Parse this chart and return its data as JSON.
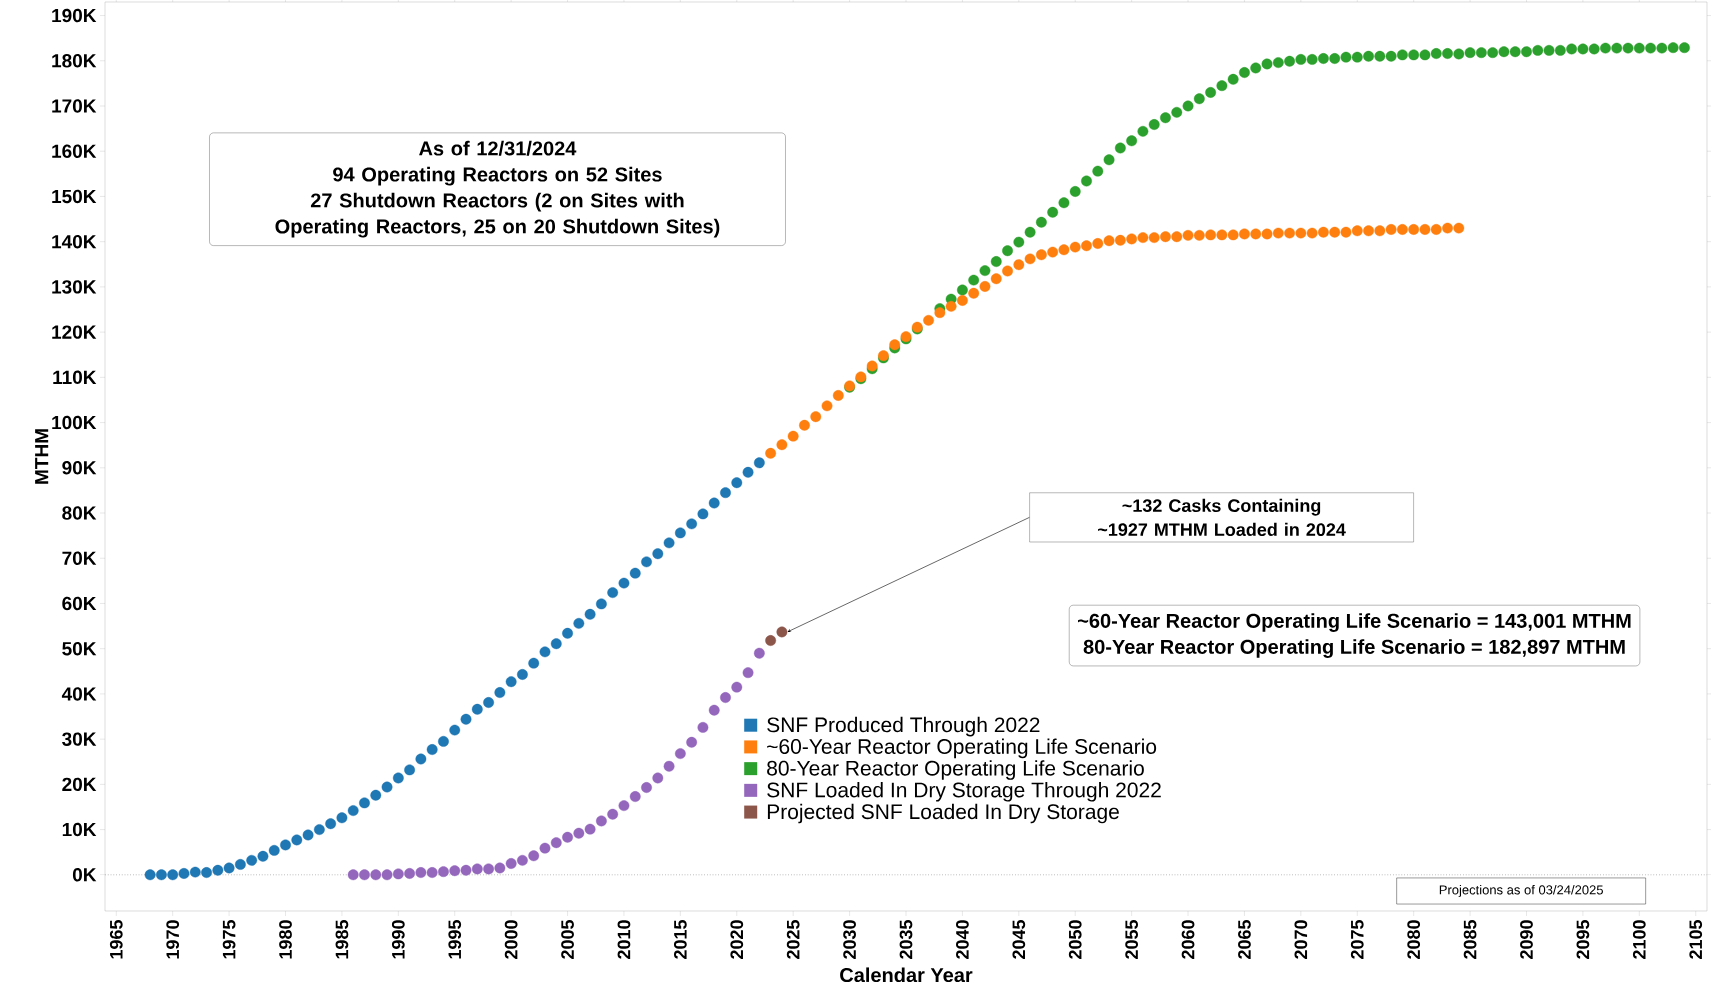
{
  "chart_data": {
    "type": "scatter",
    "xlabel": "Calendar Year",
    "ylabel": "MTHM",
    "xlim": [
      1964,
      2106
    ],
    "ylim": [
      -8000,
      193000
    ],
    "xticks": [
      1965,
      1970,
      1975,
      1980,
      1985,
      1990,
      1995,
      2000,
      2005,
      2010,
      2015,
      2020,
      2025,
      2030,
      2035,
      2040,
      2045,
      2050,
      2055,
      2060,
      2065,
      2070,
      2075,
      2080,
      2085,
      2090,
      2095,
      2100,
      2105
    ],
    "yticks": [
      {
        "value": 0,
        "label": "0K"
      },
      {
        "value": 10000,
        "label": "10K"
      },
      {
        "value": 20000,
        "label": "20K"
      },
      {
        "value": 30000,
        "label": "30K"
      },
      {
        "value": 40000,
        "label": "40K"
      },
      {
        "value": 50000,
        "label": "50K"
      },
      {
        "value": 60000,
        "label": "60K"
      },
      {
        "value": 70000,
        "label": "70K"
      },
      {
        "value": 80000,
        "label": "80K"
      },
      {
        "value": 90000,
        "label": "90K"
      },
      {
        "value": 100000,
        "label": "100K"
      },
      {
        "value": 110000,
        "label": "110K"
      },
      {
        "value": 120000,
        "label": "120K"
      },
      {
        "value": 130000,
        "label": "130K"
      },
      {
        "value": 140000,
        "label": "140K"
      },
      {
        "value": 150000,
        "label": "150K"
      },
      {
        "value": 160000,
        "label": "160K"
      },
      {
        "value": 170000,
        "label": "170K"
      },
      {
        "value": 180000,
        "label": "180K"
      },
      {
        "value": 190000,
        "label": "190K"
      }
    ],
    "marker": "circle",
    "legend": "bottom",
    "grid": false,
    "ref_lines": [
      {
        "axis": "y",
        "value": 0,
        "color": "#999999",
        "line_style": "dotted"
      }
    ],
    "annotations": [
      "As of 12/31/2024",
      "94 Operating Reactors on 52 Sites",
      "27 Shutdown Reactors (2 on Sites with Operating Reactors, 25 on 20 Shutdown Sites)",
      "~132 Casks Containing ~1927 MTHM Loaded in 2024",
      "~60-Year Reactor Operating Life Scenario = 143,001 MTHM",
      "80-Year Reactor Operating Life Scenario = 182,897 MTHM",
      "Projections as of 03/24/2025"
    ],
    "series": [
      {
        "name": "SNF Produced Through 2022",
        "color": "#1f77b4",
        "x": [
          1968,
          1969,
          1970,
          1971,
          1972,
          1973,
          1974,
          1975,
          1976,
          1977,
          1978,
          1979,
          1980,
          1981,
          1982,
          1983,
          1984,
          1985,
          1986,
          1987,
          1988,
          1989,
          1990,
          1991,
          1992,
          1993,
          1994,
          1995,
          1996,
          1997,
          1998,
          1999,
          2000,
          2001,
          2002,
          2003,
          2004,
          2005,
          2006,
          2007,
          2008,
          2009,
          2010,
          2011,
          2012,
          2013,
          2014,
          2015,
          2016,
          2017,
          2018,
          2019,
          2020,
          2021,
          2022
        ],
        "values": [
          0,
          0,
          0,
          300,
          600,
          500,
          1000,
          1500,
          2300,
          3200,
          4100,
          5400,
          6600,
          7700,
          8800,
          10000,
          11300,
          12600,
          14200,
          15900,
          17600,
          19400,
          21400,
          23200,
          25600,
          27700,
          29500,
          32000,
          34400,
          36600,
          38100,
          40300,
          42700,
          44300,
          46800,
          49300,
          51100,
          53400,
          55600,
          57600,
          59900,
          62400,
          64500,
          66700,
          69200,
          71000,
          73400,
          75600,
          77600,
          79800,
          82200,
          84500,
          86700,
          89000,
          91100
        ]
      },
      {
        "name": "~60-Year Reactor Operating Life Scenario",
        "color": "#ff7f0e",
        "x": [
          2023,
          2024,
          2025,
          2026,
          2027,
          2028,
          2029,
          2030,
          2031,
          2032,
          2033,
          2034,
          2035,
          2036,
          2037,
          2038,
          2039,
          2040,
          2041,
          2042,
          2043,
          2044,
          2045,
          2046,
          2047,
          2048,
          2049,
          2050,
          2051,
          2052,
          2053,
          2054,
          2055,
          2056,
          2057,
          2058,
          2059,
          2060,
          2061,
          2062,
          2063,
          2064,
          2065,
          2066,
          2067,
          2068,
          2069,
          2070,
          2071,
          2072,
          2073,
          2074,
          2075,
          2076,
          2077,
          2078,
          2079,
          2080,
          2081,
          2082,
          2083,
          2084
        ],
        "values": [
          93200,
          95100,
          97000,
          99400,
          101300,
          103700,
          106000,
          108100,
          110100,
          112500,
          114800,
          117200,
          119000,
          121100,
          122600,
          124300,
          125700,
          127000,
          128600,
          130100,
          131800,
          133500,
          134900,
          136200,
          137100,
          137700,
          138200,
          138800,
          139100,
          139600,
          140200,
          140300,
          140600,
          140900,
          140900,
          141100,
          141100,
          141400,
          141400,
          141500,
          141500,
          141500,
          141700,
          141700,
          141700,
          141900,
          141900,
          141900,
          141900,
          142100,
          142100,
          142100,
          142400,
          142400,
          142400,
          142700,
          142700,
          142700,
          142700,
          142700,
          143000,
          143000
        ]
      },
      {
        "name": "80-Year Reactor Operating Life Scenario",
        "color": "#2ca02c",
        "x": [
          2030,
          2031,
          2032,
          2033,
          2034,
          2035,
          2036,
          2037,
          2038,
          2039,
          2040,
          2041,
          2042,
          2043,
          2044,
          2045,
          2046,
          2047,
          2048,
          2049,
          2050,
          2051,
          2052,
          2053,
          2054,
          2055,
          2056,
          2057,
          2058,
          2059,
          2060,
          2061,
          2062,
          2063,
          2064,
          2065,
          2066,
          2067,
          2068,
          2069,
          2070,
          2071,
          2072,
          2073,
          2074,
          2075,
          2076,
          2077,
          2078,
          2079,
          2080,
          2081,
          2082,
          2083,
          2084,
          2085,
          2086,
          2087,
          2088,
          2089,
          2090,
          2091,
          2092,
          2093,
          2094,
          2095,
          2096,
          2097,
          2098,
          2099,
          2100,
          2101,
          2102,
          2103,
          2104
        ],
        "values": [
          107800,
          109700,
          111900,
          114300,
          116500,
          118500,
          120700,
          null,
          125200,
          127300,
          129300,
          131500,
          133600,
          135600,
          138000,
          139900,
          142100,
          144300,
          146500,
          148600,
          151100,
          153400,
          155600,
          158100,
          160700,
          162300,
          164400,
          165900,
          167400,
          168600,
          170000,
          171600,
          173000,
          174500,
          175900,
          177400,
          178400,
          179300,
          179600,
          179900,
          180300,
          180300,
          180500,
          180500,
          180800,
          180800,
          181000,
          181000,
          181000,
          181300,
          181300,
          181300,
          181600,
          181600,
          181500,
          181800,
          181800,
          181800,
          182000,
          182000,
          182000,
          182300,
          182300,
          182300,
          182600,
          182600,
          182600,
          182800,
          182800,
          182800,
          182800,
          182800,
          182800,
          182900,
          182900
        ]
      },
      {
        "name": "SNF Loaded In Dry Storage Through 2022",
        "color": "#9467bd",
        "x": [
          1986,
          1987,
          1988,
          1989,
          1990,
          1991,
          1992,
          1993,
          1994,
          1995,
          1996,
          1997,
          1998,
          1999,
          2000,
          2001,
          2002,
          2003,
          2004,
          2005,
          2006,
          2007,
          2008,
          2009,
          2010,
          2011,
          2012,
          2013,
          2014,
          2015,
          2016,
          2017,
          2018,
          2019,
          2020,
          2021,
          2022
        ],
        "values": [
          0,
          0,
          0,
          0,
          200,
          300,
          500,
          500,
          700,
          900,
          1000,
          1300,
          1300,
          1500,
          2500,
          3200,
          4200,
          5900,
          7100,
          8300,
          9200,
          10100,
          11900,
          13400,
          15300,
          17300,
          19300,
          21400,
          24000,
          26800,
          29300,
          32600,
          36400,
          39200,
          41500,
          44700,
          49000
        ]
      },
      {
        "name": "Projected SNF Loaded In Dry Storage",
        "color": "#8c564b",
        "x": [
          2023,
          2024
        ],
        "values": [
          51800,
          53700
        ]
      }
    ]
  }
}
